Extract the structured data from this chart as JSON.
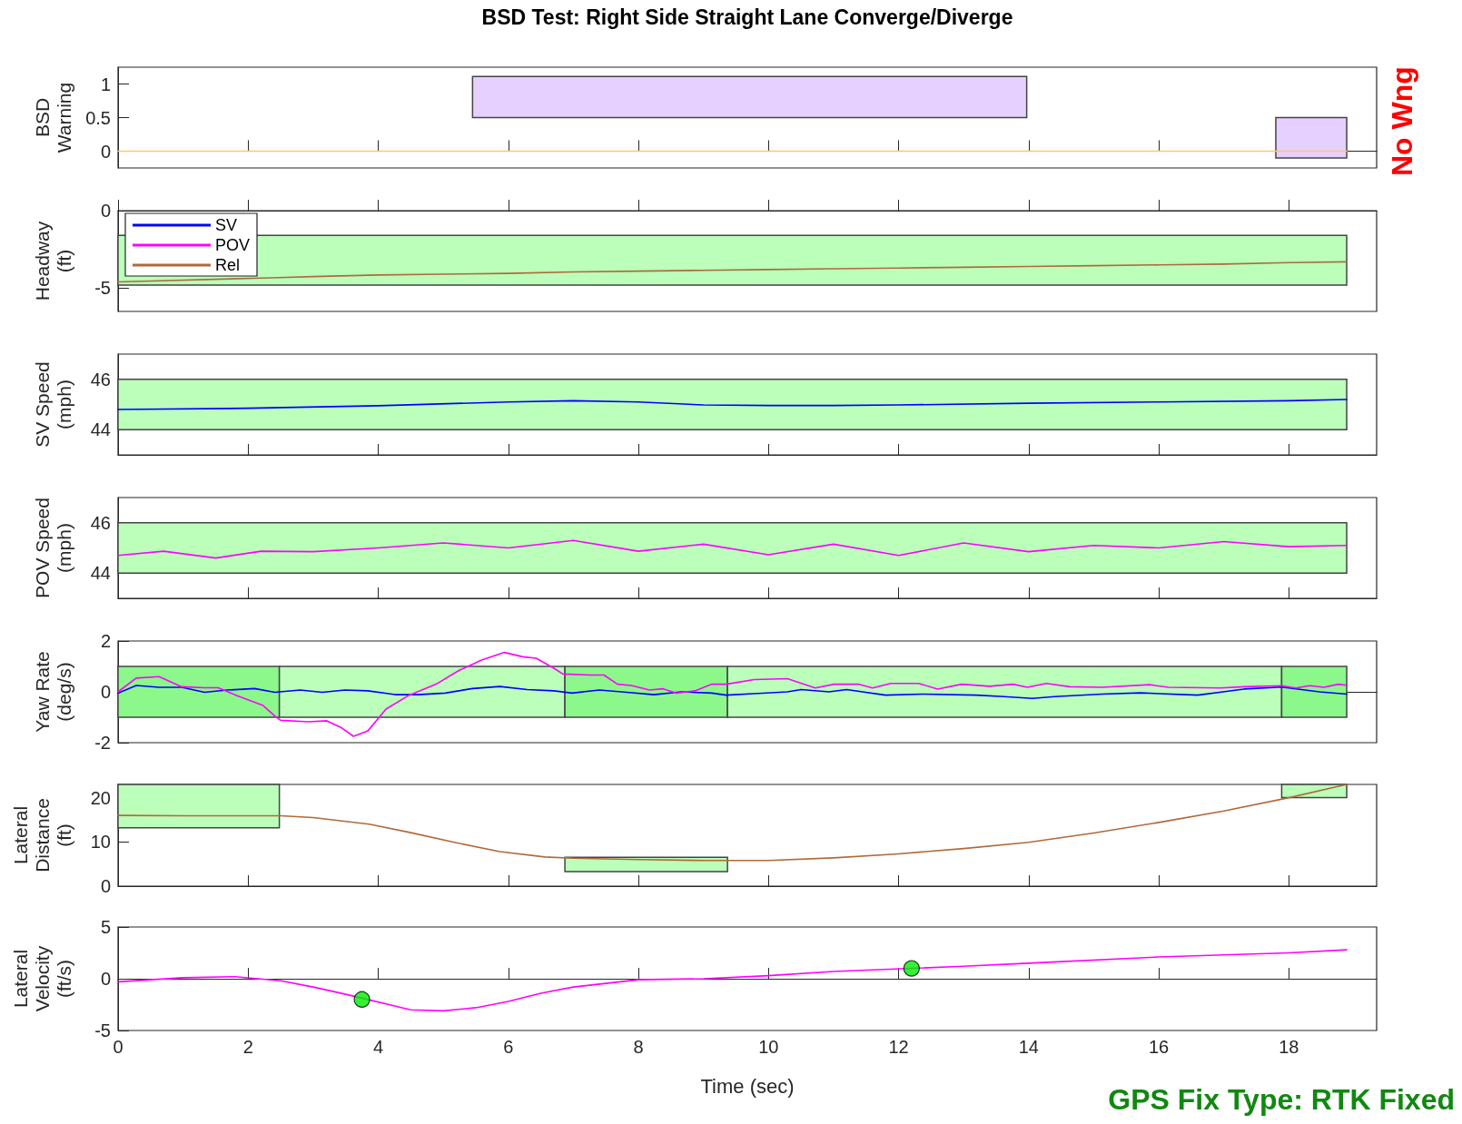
{
  "chart_data": [
    {
      "type": "line",
      "title": "BSD Test: Right Side Straight Lane Converge/Diverge",
      "ylabel": "BSD\nWarning",
      "annotations": [
        "No Wng"
      ],
      "xlim": [
        0,
        19.35
      ],
      "xticks": [
        0,
        2,
        4,
        6,
        8,
        10,
        12,
        14,
        16,
        18
      ],
      "ylim": [
        -0.25,
        1.25
      ],
      "yticks": [
        0,
        0.5,
        1
      ],
      "tick_labels": "y",
      "series": [
        {
          "color": "#e5d0ff",
          "x": [
            5.45,
            13.97
          ],
          "values": [
            null,
            null
          ],
          "lower": [
            0.5,
            0.5
          ],
          "upper": [
            1.11,
            1.11
          ]
        },
        {
          "color": "#e5d0ff",
          "x": [
            17.8,
            18.89
          ],
          "values": [
            null,
            null
          ],
          "lower": [
            -0.1,
            -0.1
          ],
          "upper": [
            0.5,
            0.5
          ]
        },
        {
          "color": "#ffc861",
          "x": [
            0,
            2,
            4,
            6,
            8,
            10,
            12,
            14,
            16,
            18,
            18.89
          ],
          "values": [
            0,
            0,
            0,
            0,
            0,
            0,
            0,
            0,
            0,
            0,
            0
          ]
        }
      ]
    },
    {
      "type": "line",
      "ylabel": "Headway\n(ft)",
      "legend": "top left",
      "xlim": [
        0,
        19.35
      ],
      "xticks": [
        0,
        2,
        4,
        6,
        8,
        10,
        12,
        14,
        16,
        18
      ],
      "ylim": [
        -6.5,
        0
      ],
      "yticks": [
        -5,
        0
      ],
      "tick_labels": "y",
      "series": [
        {
          "color": "#bbffbb",
          "x": [
            0,
            18.89
          ],
          "values": [
            null,
            null
          ],
          "lower": [
            -4.8,
            -4.8
          ],
          "upper": [
            -1.6,
            -1.6
          ]
        },
        {
          "name": "SV",
          "color": "#0000ff"
        },
        {
          "name": "POV",
          "color": "#ff00ff"
        },
        {
          "name": "Rel",
          "color": "#b06a3a",
          "x": [
            0,
            2.35,
            3,
            4,
            5,
            6,
            7,
            8,
            9,
            10,
            11,
            12,
            13,
            14,
            15,
            16,
            17,
            18,
            18.89
          ],
          "values": [
            -4.6,
            -4.33,
            -4.25,
            -4.15,
            -4.1,
            -4.05,
            -3.95,
            -3.9,
            -3.85,
            -3.8,
            -3.75,
            -3.7,
            -3.65,
            -3.6,
            -3.55,
            -3.5,
            -3.45,
            -3.35,
            -3.3
          ]
        }
      ]
    },
    {
      "type": "line",
      "ylabel": "SV Speed\n(mph)",
      "xlim": [
        0,
        19.35
      ],
      "xticks": [
        0,
        2,
        4,
        6,
        8,
        10,
        12,
        14,
        16,
        18
      ],
      "ylim": [
        43,
        47
      ],
      "yticks": [
        44,
        46
      ],
      "tick_labels": "y",
      "series": [
        {
          "color": "#bbffbb",
          "x": [
            0,
            18.89
          ],
          "values": [
            null,
            null
          ],
          "lower": [
            44,
            44
          ],
          "upper": [
            46,
            46
          ]
        },
        {
          "color": "#0000ff",
          "x": [
            0,
            2,
            4,
            6,
            7,
            8,
            9,
            10,
            11,
            12,
            14,
            16,
            18,
            18.89
          ],
          "values": [
            44.8,
            44.85,
            44.95,
            45.1,
            45.15,
            45.1,
            44.98,
            44.96,
            44.96,
            44.98,
            45.05,
            45.1,
            45.15,
            45.2
          ]
        }
      ]
    },
    {
      "type": "line",
      "ylabel": "POV Speed\n(mph)",
      "xlim": [
        0,
        19.35
      ],
      "xticks": [
        0,
        2,
        4,
        6,
        8,
        10,
        12,
        14,
        16,
        18
      ],
      "ylim": [
        43,
        47
      ],
      "yticks": [
        44,
        46
      ],
      "tick_labels": "y",
      "series": [
        {
          "color": "#bbffbb",
          "x": [
            0,
            18.89
          ],
          "values": [
            null,
            null
          ],
          "lower": [
            44,
            44
          ],
          "upper": [
            46,
            46
          ]
        },
        {
          "color": "#ff00ff",
          "x": [
            0,
            0.7,
            1.5,
            2.2,
            3,
            4,
            5,
            6,
            7,
            8,
            9,
            10,
            11,
            12,
            13,
            14,
            15,
            16,
            17,
            18,
            18.89
          ],
          "values": [
            44.7,
            44.87,
            44.6,
            44.87,
            44.85,
            45.0,
            45.2,
            45.0,
            45.3,
            44.87,
            45.15,
            44.73,
            45.15,
            44.7,
            45.2,
            44.85,
            45.1,
            45.0,
            45.25,
            45.05,
            45.1
          ]
        }
      ]
    },
    {
      "type": "line",
      "ylabel": "Yaw Rate\n(deg/s)",
      "xlim": [
        0,
        19.35
      ],
      "xticks": [
        0,
        2,
        4,
        6,
        8,
        10,
        12,
        14,
        16,
        18
      ],
      "ylim": [
        -2,
        2
      ],
      "yticks": [
        -2,
        0,
        2
      ],
      "tick_labels": "y",
      "series": [
        {
          "color": "#8cf88c",
          "x": [
            0,
            2.48
          ],
          "values": [
            null,
            null
          ],
          "lower": [
            -1,
            -1
          ],
          "upper": [
            1,
            1
          ]
        },
        {
          "color": "#bbffbb",
          "x": [
            2.48,
            6.87
          ],
          "values": [
            null,
            null
          ],
          "lower": [
            -1,
            -1
          ],
          "upper": [
            1,
            1
          ]
        },
        {
          "color": "#8cf88c",
          "x": [
            6.87,
            9.37
          ],
          "values": [
            null,
            null
          ],
          "lower": [
            -1,
            -1
          ],
          "upper": [
            1,
            1
          ]
        },
        {
          "color": "#bbffbb",
          "x": [
            9.37,
            17.89
          ],
          "values": [
            null,
            null
          ],
          "lower": [
            -1,
            -1
          ],
          "upper": [
            1,
            1
          ]
        },
        {
          "color": "#8cf88c",
          "x": [
            17.89,
            18.89
          ],
          "values": [
            null,
            null
          ],
          "lower": [
            -1,
            -1
          ],
          "upper": [
            1,
            1
          ]
        },
        {
          "color": "#0000ff",
          "x": [
            0,
            0.28,
            0.63,
            0.98,
            1.33,
            1.68,
            2.1,
            2.41,
            2.8,
            3.14,
            3.49,
            3.84,
            4.26,
            4.61,
            5.03,
            5.45,
            5.87,
            6.29,
            6.7,
            6.98,
            7.4,
            7.82,
            8.24,
            8.66,
            9.13,
            9.35,
            9.78,
            10.29,
            10.5,
            10.93,
            11.2,
            11.8,
            12.37,
            13.19,
            13.62,
            14.06,
            14.4,
            15.13,
            15.72,
            16.6,
            17.31,
            17.89,
            18.47,
            18.89
          ],
          "values": [
            -0.05,
            0.25,
            0.18,
            0.18,
            -0.02,
            0.07,
            0.13,
            -0.02,
            0.07,
            -0.02,
            0.07,
            0.04,
            -0.11,
            -0.11,
            -0.05,
            0.13,
            0.21,
            0.09,
            0.04,
            -0.05,
            0.07,
            -0.02,
            -0.11,
            0,
            -0.05,
            -0.13,
            -0.07,
            0,
            0.09,
            0,
            0.09,
            -0.13,
            -0.09,
            -0.13,
            -0.19,
            -0.26,
            -0.19,
            -0.09,
            -0.04,
            -0.13,
            0.11,
            0.19,
            0,
            -0.09
          ]
        },
        {
          "color": "#ff00ff",
          "x": [
            0,
            0.28,
            0.63,
            0.98,
            1.33,
            1.54,
            1.82,
            2.23,
            2.41,
            2.5,
            2.93,
            3.21,
            3.42,
            3.62,
            3.84,
            4.12,
            4.47,
            4.89,
            5.24,
            5.59,
            5.94,
            6.22,
            6.43,
            6.7,
            6.84,
            7.26,
            7.47,
            7.68,
            7.89,
            8.17,
            8.38,
            8.59,
            8.87,
            9.13,
            9.35,
            9.78,
            10.29,
            10.72,
            11.01,
            11.38,
            11.6,
            11.88,
            12.31,
            12.6,
            12.97,
            13.4,
            13.76,
            13.98,
            14.27,
            14.63,
            15.13,
            15.86,
            16.15,
            16.95,
            17.31,
            17.89,
            18.11,
            18.32,
            18.54,
            18.76,
            18.89
          ],
          "values": [
            0,
            0.54,
            0.6,
            0.2,
            0.16,
            0.16,
            -0.14,
            -0.54,
            -0.95,
            -1.12,
            -1.18,
            -1.14,
            -1.39,
            -1.75,
            -1.54,
            -0.68,
            -0.14,
            0.3,
            0.84,
            1.25,
            1.55,
            1.38,
            1.32,
            0.93,
            0.7,
            0.66,
            0.66,
            0.3,
            0.25,
            0.07,
            0.12,
            -0.05,
            0.04,
            0.3,
            0.3,
            0.48,
            0.52,
            0.15,
            0.3,
            0.3,
            0.15,
            0.33,
            0.33,
            0.11,
            0.3,
            0.22,
            0.3,
            0.18,
            0.33,
            0.2,
            0.18,
            0.28,
            0.18,
            0.15,
            0.2,
            0.24,
            0.15,
            0.24,
            0.18,
            0.3,
            0.26
          ]
        }
      ]
    },
    {
      "type": "line",
      "ylabel": "Lateral\nDistance\n(ft)",
      "xlim": [
        0,
        19.35
      ],
      "xticks": [
        0,
        2,
        4,
        6,
        8,
        10,
        12,
        14,
        16,
        18
      ],
      "ylim": [
        0,
        23
      ],
      "yticks": [
        0,
        10,
        20
      ],
      "tick_labels": "y",
      "series": [
        {
          "color": "#bbffbb",
          "x": [
            0,
            2.48
          ],
          "values": [
            null,
            null
          ],
          "lower": [
            13.2,
            13.2
          ],
          "upper": [
            23,
            23
          ]
        },
        {
          "color": "#bbffbb",
          "x": [
            6.87,
            9.37
          ],
          "values": [
            null,
            null
          ],
          "lower": [
            3.3,
            3.3
          ],
          "upper": [
            6.5,
            6.5
          ]
        },
        {
          "color": "#bbffbb",
          "x": [
            17.89,
            18.89
          ],
          "values": [
            null,
            null
          ],
          "lower": [
            20,
            20
          ],
          "upper": [
            23,
            23
          ]
        },
        {
          "color": "#b06a3a",
          "x": [
            0,
            1,
            2,
            2.5,
            3,
            3.86,
            4.47,
            5.17,
            5.87,
            6.56,
            7,
            8,
            9,
            10,
            11,
            12,
            13,
            14,
            15,
            16,
            17,
            18,
            18.89
          ],
          "values": [
            16,
            15.9,
            15.9,
            15.9,
            15.5,
            14,
            12.2,
            9.9,
            7.8,
            6.6,
            6.3,
            6,
            5.8,
            5.8,
            6.4,
            7.3,
            8.5,
            9.9,
            12,
            14.4,
            17,
            20,
            23
          ]
        }
      ]
    },
    {
      "type": "line",
      "ylabel": "Lateral\nVelocity\n(ft/s)",
      "xlabel": "Time (sec)",
      "annotations": [
        "GPS Fix Type: RTK Fixed"
      ],
      "xlim": [
        0,
        19.35
      ],
      "xticks": [
        0,
        2,
        4,
        6,
        8,
        10,
        12,
        14,
        16,
        18
      ],
      "ylim": [
        -5,
        5
      ],
      "yticks": [
        -5,
        0,
        5
      ],
      "series": [
        {
          "color": "#ff00ff",
          "x": [
            0,
            1,
            1.8,
            2.5,
            3,
            3.5,
            4.5,
            5,
            5.5,
            6,
            6.5,
            7,
            8,
            9,
            10,
            11,
            13,
            14,
            16,
            18,
            18.89
          ],
          "values": [
            -0.3,
            0.1,
            0.2,
            -0.2,
            -0.8,
            -1.5,
            -3,
            -3.1,
            -2.8,
            -2.2,
            -1.4,
            -0.8,
            -0.1,
            0,
            0.3,
            0.7,
            1.2,
            1.5,
            2.1,
            2.5,
            2.8
          ]
        },
        {
          "type": "scatter",
          "color": "#00ee00",
          "marker": "circle",
          "x": [
            3.75,
            12.2
          ],
          "values": [
            -2,
            1
          ]
        }
      ]
    }
  ]
}
